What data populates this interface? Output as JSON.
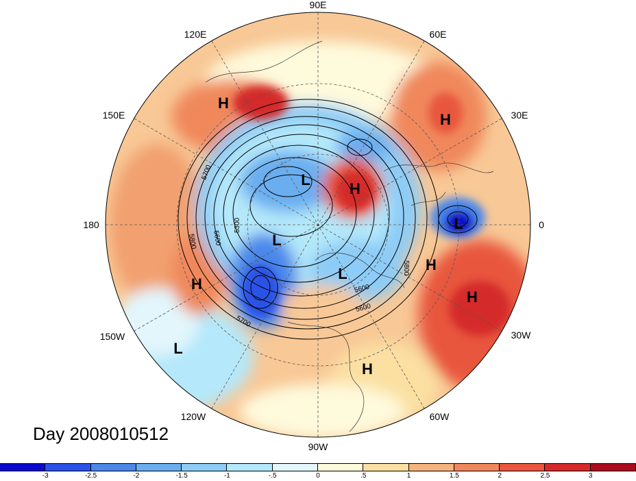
{
  "title": "Day 2008010512",
  "lon_labels": [
    "90E",
    "60E",
    "30E",
    "0",
    "30W",
    "60W",
    "90W",
    "120W",
    "150W",
    "180",
    "150E",
    "120E"
  ],
  "centers": [
    {
      "type": "H",
      "label": "H"
    },
    {
      "type": "H",
      "label": "H"
    },
    {
      "type": "H",
      "label": "H"
    },
    {
      "type": "H",
      "label": "H"
    },
    {
      "type": "H",
      "label": "H"
    },
    {
      "type": "H",
      "label": "H"
    },
    {
      "type": "H",
      "label": "H"
    },
    {
      "type": "L",
      "label": "L"
    },
    {
      "type": "L",
      "label": "L"
    },
    {
      "type": "L",
      "label": "L"
    },
    {
      "type": "L",
      "label": "L"
    },
    {
      "type": "L",
      "label": "L"
    }
  ],
  "contour_labels": [
    "5700",
    "5800",
    "5600",
    "5300",
    "5800",
    "5600",
    "5700",
    "5600"
  ],
  "colorbar": {
    "colors": [
      "#0a0acc",
      "#2a52e6",
      "#4b88ea",
      "#6aaef0",
      "#8dccf6",
      "#b4e8fa",
      "#e2f6fc",
      "#fefadc",
      "#fbe0a2",
      "#f6b47c",
      "#f0885c",
      "#e8573e",
      "#d42a2a",
      "#a80c1e"
    ],
    "ticks": [
      "-3",
      "-2.5",
      "-2",
      "-1.5",
      "-1",
      "-.5",
      "0",
      ".5",
      "1",
      "1.5",
      "2",
      "2.5",
      "3"
    ]
  }
}
